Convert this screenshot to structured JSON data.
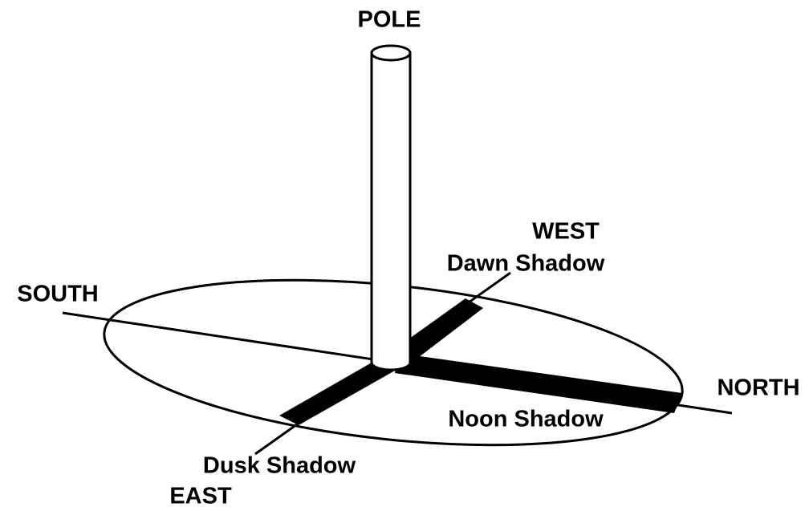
{
  "labels": {
    "pole": "POLE",
    "west": "WEST",
    "dawn": "Dawn Shadow",
    "south": "SOUTH",
    "north": "NORTH",
    "noon": "Noon Shadow",
    "dusk": "Dusk Shadow",
    "east": "EAST"
  }
}
